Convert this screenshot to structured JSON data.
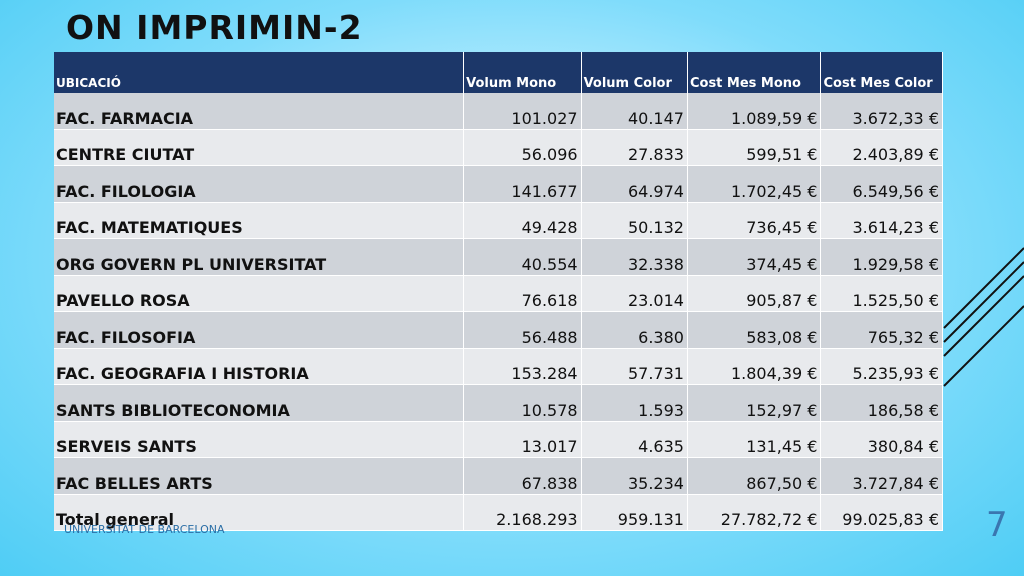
{
  "slide": {
    "title": "ON IMPRIMIN-2",
    "footer": "UNIVERSITAT DE BARCELONA",
    "page_number": "7"
  },
  "table": {
    "headers": [
      "UBICACIÓ",
      "Volum Mono",
      "Volum Color",
      "Cost Mes Mono",
      "Cost Mes Color"
    ],
    "rows": [
      [
        "FAC. FARMACIA",
        "101.027",
        "40.147",
        "1.089,59 €",
        "3.672,33 €"
      ],
      [
        "CENTRE CIUTAT",
        "56.096",
        "27.833",
        "599,51 €",
        "2.403,89 €"
      ],
      [
        "FAC. FILOLOGIA",
        "141.677",
        "64.974",
        "1.702,45 €",
        "6.549,56 €"
      ],
      [
        "FAC. MATEMATIQUES",
        "49.428",
        "50.132",
        "736,45 €",
        "3.614,23 €"
      ],
      [
        "ORG GOVERN PL UNIVERSITAT",
        "40.554",
        "32.338",
        "374,45 €",
        "1.929,58 €"
      ],
      [
        "PAVELLO ROSA",
        "76.618",
        "23.014",
        "905,87 €",
        "1.525,50 €"
      ],
      [
        "FAC. FILOSOFIA",
        "56.488",
        "6.380",
        "583,08 €",
        "765,32 €"
      ],
      [
        "FAC. GEOGRAFIA I HISTORIA",
        "153.284",
        "57.731",
        "1.804,39 €",
        "5.235,93 €"
      ],
      [
        "SANTS BIBLIOTECONOMIA",
        "10.578",
        "1.593",
        "152,97 €",
        "186,58 €"
      ],
      [
        "SERVEIS SANTS",
        "13.017",
        "4.635",
        "131,45 €",
        "380,84 €"
      ],
      [
        "FAC BELLES ARTS",
        "67.838",
        "35.234",
        "867,50 €",
        "3.727,84 €"
      ],
      [
        "Total general",
        "2.168.293",
        "959.131",
        "27.782,72 €",
        "99.025,83 €"
      ]
    ]
  }
}
